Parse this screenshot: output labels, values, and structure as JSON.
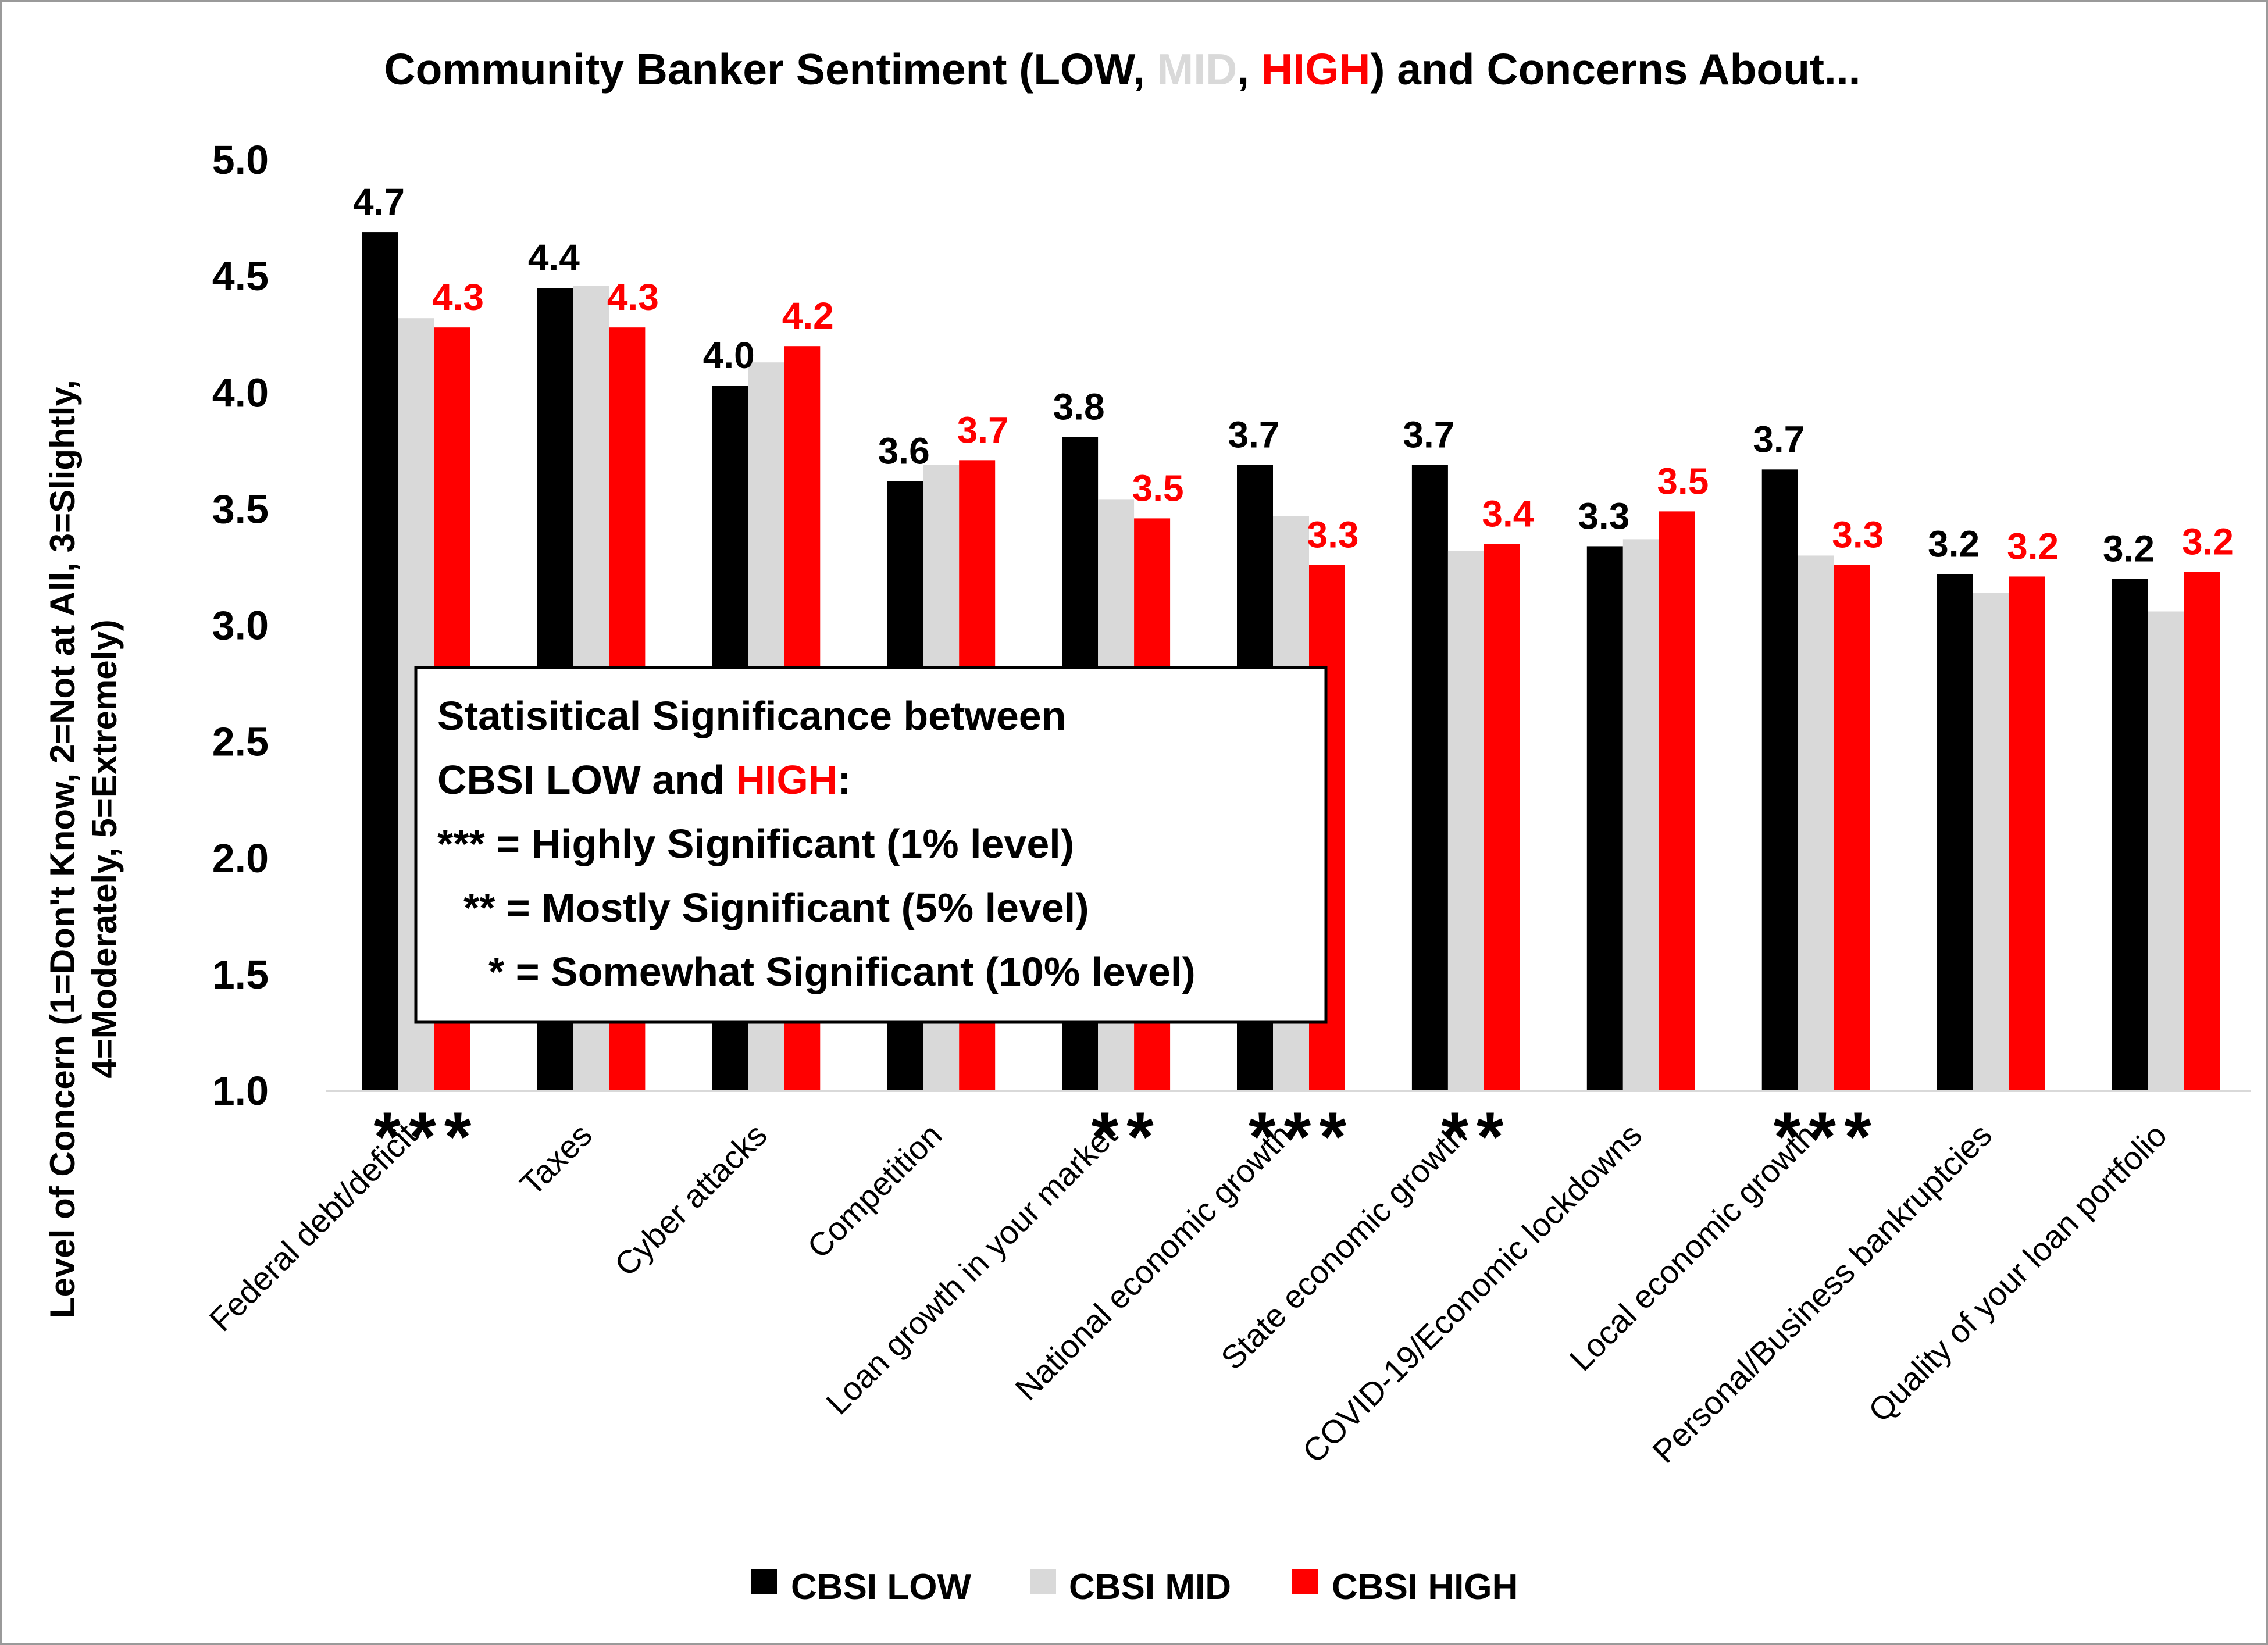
{
  "chart_data": {
    "type": "bar",
    "title": {
      "prefix": "Community Banker Sentiment (",
      "low": "LOW",
      "sep1": ", ",
      "mid": "MID",
      "sep2": ", ",
      "high": "HIGH",
      "suffix": ") and Concerns About..."
    },
    "ylabel_line1": "Level of Concern (1=Don't Know, 2=Not at All, 3=Slightly,",
    "ylabel_line2": "4=Moderately, 5=Extremely)",
    "ylim": [
      1.0,
      5.0
    ],
    "yticks": [
      "1.0",
      "1.5",
      "2.0",
      "2.5",
      "3.0",
      "3.5",
      "4.0",
      "4.5",
      "5.0"
    ],
    "grid": false,
    "legend_position": "bottom",
    "categories": [
      "Federal debt/deficit",
      "Taxes",
      "Cyber attacks",
      "Competition",
      "Loan growth in your market",
      "National economic growth",
      "State economic growth",
      "COVID-19/Economic lockdowns",
      "Local economic growth",
      "Personal/Business bankruptcies",
      "Quality of your loan portfolio"
    ],
    "series": [
      {
        "name": "CBSI LOW",
        "color": "#000000",
        "label_color": "#000000",
        "values": [
          4.69,
          4.45,
          4.03,
          3.62,
          3.81,
          3.69,
          3.69,
          3.34,
          3.67,
          3.22,
          3.2
        ],
        "labels": [
          "4.7",
          "4.4",
          "4.0",
          "3.6",
          "3.8",
          "3.7",
          "3.7",
          "3.3",
          "3.7",
          "3.2",
          "3.2"
        ]
      },
      {
        "name": "CBSI MID",
        "color": "#d9d9d9",
        "label_color": "#d9d9d9",
        "values": [
          4.32,
          4.46,
          4.13,
          3.69,
          3.54,
          3.47,
          3.32,
          3.37,
          3.3,
          3.14,
          3.06
        ],
        "labels": []
      },
      {
        "name": "CBSI HIGH",
        "color": "#ff0000",
        "label_color": "#ff0000",
        "values": [
          4.28,
          4.28,
          4.2,
          3.71,
          3.46,
          3.26,
          3.35,
          3.49,
          3.26,
          3.21,
          3.23
        ],
        "labels": [
          "4.3",
          "4.3",
          "4.2",
          "3.7",
          "3.5",
          "3.3",
          "3.4",
          "3.5",
          "3.3",
          "3.2",
          "3.2"
        ]
      }
    ],
    "significance": [
      {
        "category_index": 0,
        "marker": "***"
      },
      {
        "category_index": 4,
        "marker": "**"
      },
      {
        "category_index": 5,
        "marker": "***"
      },
      {
        "category_index": 6,
        "marker": "**"
      },
      {
        "category_index": 8,
        "marker": "***"
      }
    ],
    "annotation": {
      "line1": "Statisitical Significance between",
      "line2_prefix": "CBSI LOW and ",
      "line2_high": "HIGH",
      "line2_suffix": ":",
      "line3": "*** = Highly Significant (1% level)",
      "line4": "** = Mostly Significant (5% level)",
      "line5": "* = Somewhat Significant (10% level)"
    },
    "legend": [
      "CBSI LOW",
      "CBSI MID",
      "CBSI HIGH"
    ]
  },
  "colors": {
    "low": "#000000",
    "mid": "#d9d9d9",
    "high": "#ff0000"
  }
}
